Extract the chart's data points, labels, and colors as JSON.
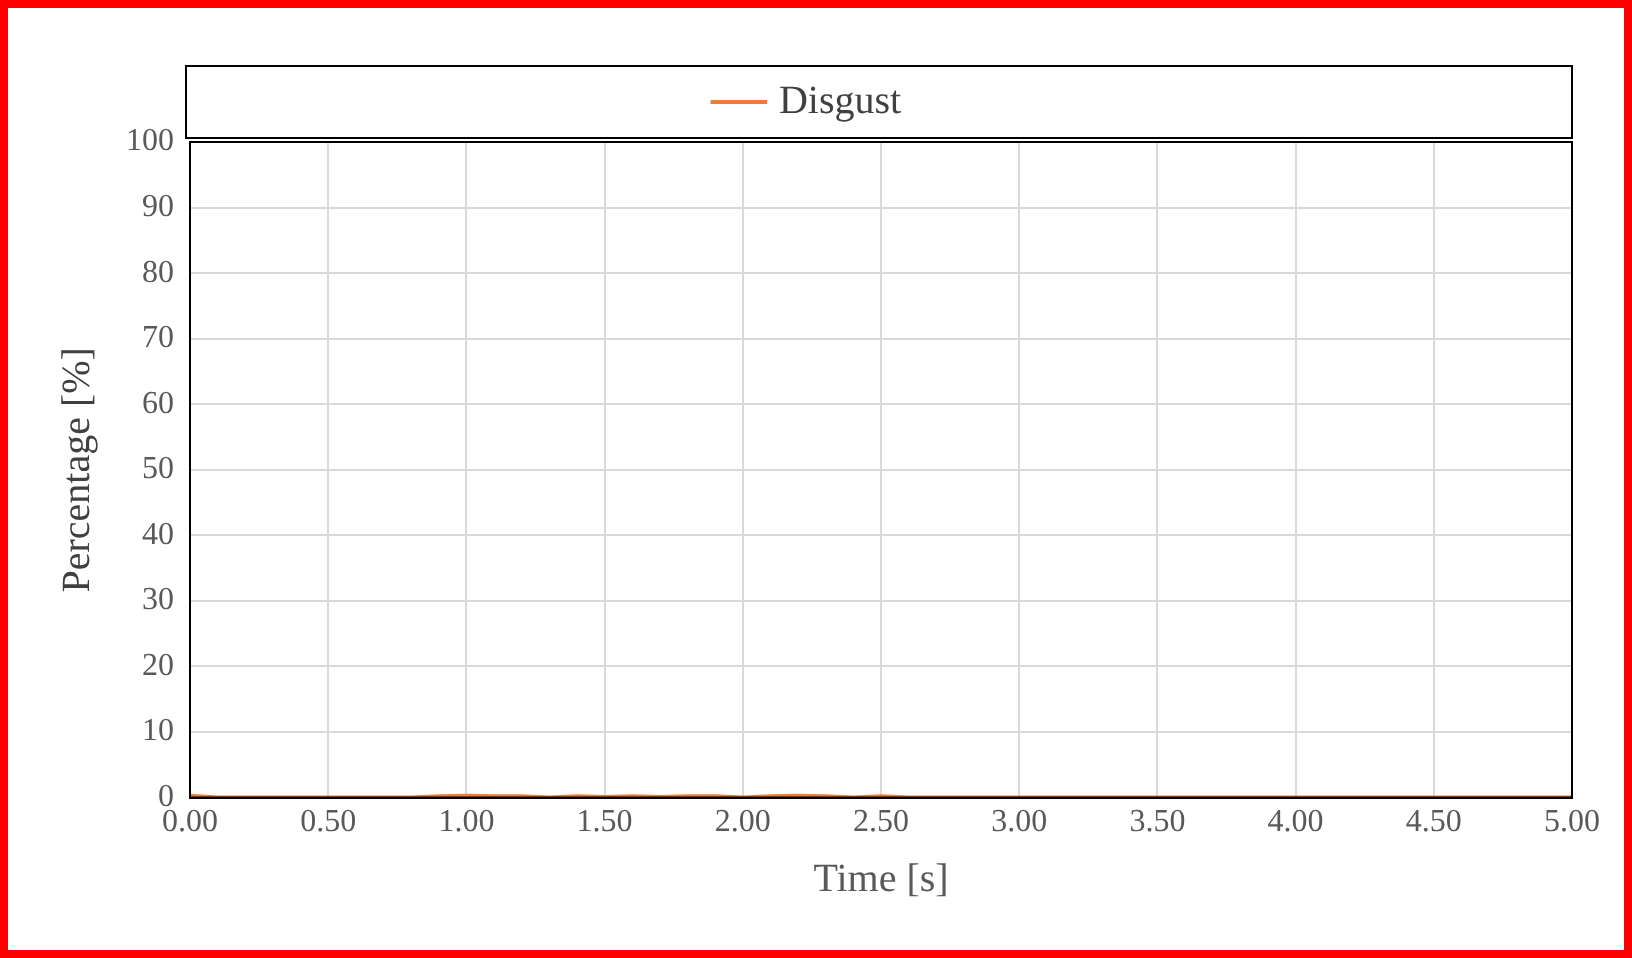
{
  "chart_data": {
    "type": "line",
    "xlabel": "Time [s]",
    "ylabel": "Percentage [%]",
    "x": [
      0,
      0.1,
      0.2,
      0.3,
      0.4,
      0.5,
      0.6,
      0.7,
      0.8,
      0.9,
      1.0,
      1.1,
      1.2,
      1.3,
      1.4,
      1.5,
      1.6,
      1.7,
      1.8,
      1.9,
      2.0,
      2.1,
      2.2,
      2.3,
      2.4,
      2.5,
      2.6,
      2.8,
      3.0,
      3.5,
      4.0,
      4.5,
      5.0
    ],
    "series": [
      {
        "name": "Disgust",
        "color": "#ed7d31",
        "values": [
          0.3,
          0,
          0,
          0,
          0,
          0,
          0,
          0,
          0,
          0.2,
          0.3,
          0.2,
          0.2,
          0,
          0.2,
          0.1,
          0.2,
          0.1,
          0.2,
          0.2,
          0,
          0.2,
          0.3,
          0.2,
          0,
          0.2,
          0,
          0,
          0,
          0,
          0,
          0,
          0
        ]
      }
    ],
    "xlim": [
      0,
      5
    ],
    "xticks": [
      {
        "value": 0,
        "label": "0.00"
      },
      {
        "value": 0.5,
        "label": "0.50"
      },
      {
        "value": 1,
        "label": "1.00"
      },
      {
        "value": 1.5,
        "label": "1.50"
      },
      {
        "value": 2,
        "label": "2.00"
      },
      {
        "value": 2.5,
        "label": "2.50"
      },
      {
        "value": 3,
        "label": "3.00"
      },
      {
        "value": 3.5,
        "label": "3.50"
      },
      {
        "value": 4,
        "label": "4.00"
      },
      {
        "value": 4.5,
        "label": "4.50"
      },
      {
        "value": 5,
        "label": "5.00"
      }
    ],
    "ylim": [
      0,
      100
    ],
    "yticks": [
      0,
      10,
      20,
      30,
      40,
      50,
      60,
      70,
      80,
      90,
      100
    ],
    "grid": true,
    "legend": "top",
    "marker": "none",
    "line_style": "solid"
  }
}
